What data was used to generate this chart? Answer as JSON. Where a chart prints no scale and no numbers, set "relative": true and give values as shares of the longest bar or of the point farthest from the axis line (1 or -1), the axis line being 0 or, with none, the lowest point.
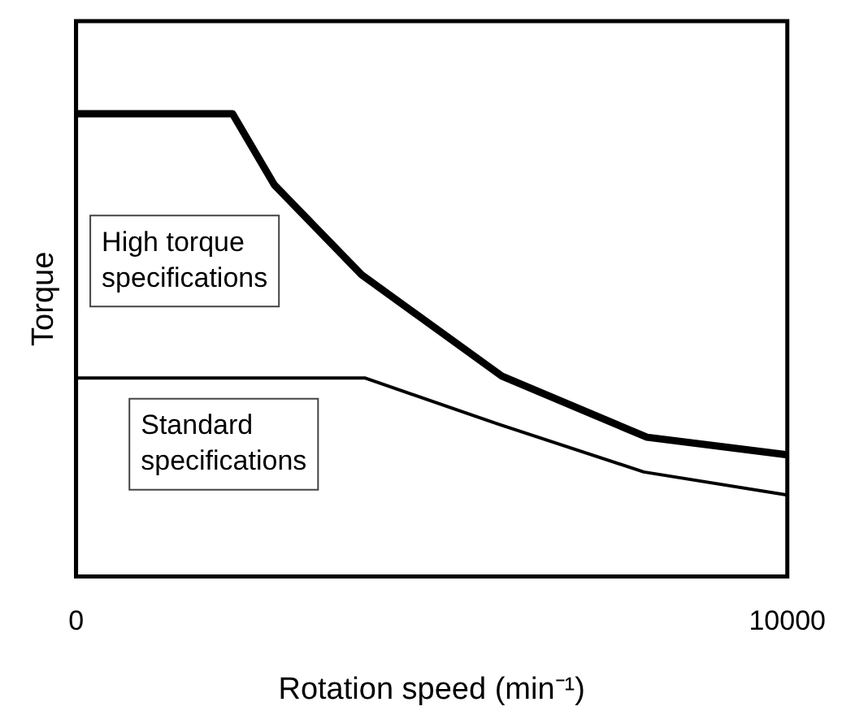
{
  "chart_data": {
    "type": "line",
    "relative": true,
    "xlabel": "Rotation speed (min⁻¹)",
    "ylabel": "Torque",
    "xlim": [
      0,
      10000
    ],
    "xticks": [
      0,
      10000
    ],
    "legend": false,
    "marker": "none",
    "line_style": "solid",
    "series": [
      {
        "name": "High torque specifications",
        "color": "#000000",
        "x": [
          0,
          2200,
          2789,
          4014,
          5986,
          8027,
          10000
        ],
        "values": [
          1,
          1,
          0.846,
          0.652,
          0.433,
          0.301,
          0.263
        ]
      },
      {
        "name": "Standard specifications",
        "color": "#000000",
        "x": [
          0,
          4059,
          5941,
          7982,
          10000
        ],
        "values": [
          0.429,
          0.429,
          0.329,
          0.226,
          0.176
        ]
      }
    ]
  }
}
